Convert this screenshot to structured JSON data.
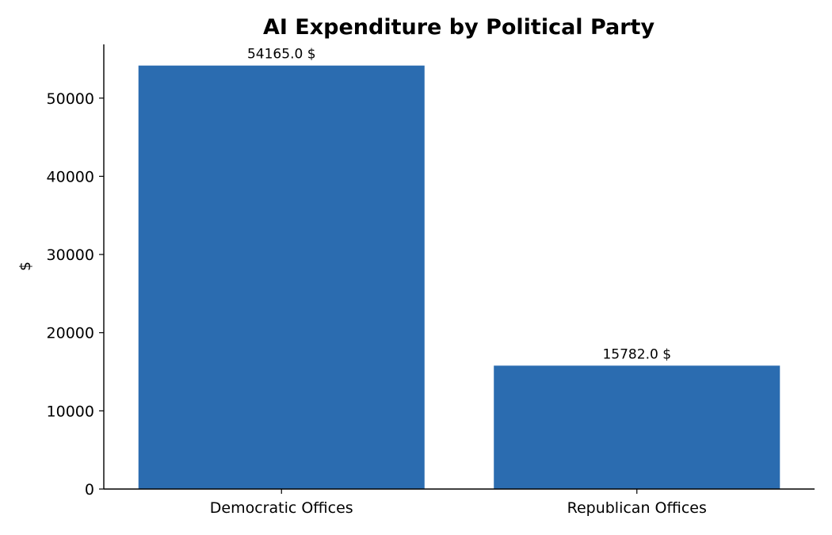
{
  "chart_data": {
    "type": "bar",
    "title": "AI Expenditure by Political Party",
    "xlabel": "",
    "ylabel": "$",
    "categories": [
      "Democratic Offices",
      "Republican Offices"
    ],
    "values": [
      54165.0,
      15782.0
    ],
    "value_labels": [
      "54165.0 $",
      "15782.0 $"
    ],
    "ylim": [
      0,
      56873
    ],
    "yticks": [
      0,
      10000,
      20000,
      30000,
      40000,
      50000
    ],
    "ytick_labels": [
      "0",
      "10000",
      "20000",
      "30000",
      "40000",
      "50000"
    ],
    "grid": false,
    "legend": "none",
    "bar_color": "#2b6cb0"
  }
}
